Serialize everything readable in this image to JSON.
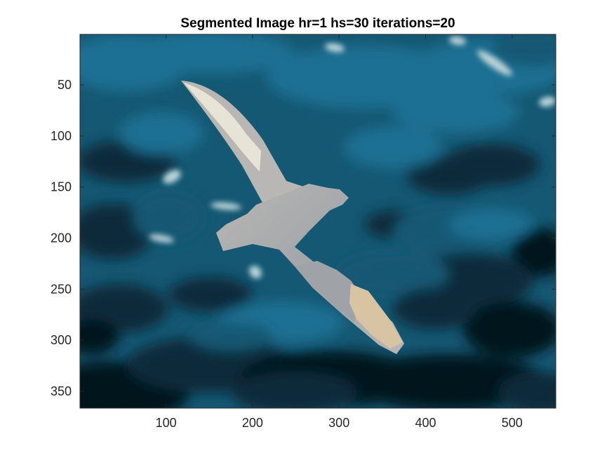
{
  "chart_data": {
    "type": "image",
    "title": "Segmented Image hr=1 hs=30 iterations=20",
    "xlim": [
      0.5,
      550.5
    ],
    "ylim": [
      0.5,
      366.5
    ],
    "y_reversed": true,
    "x_ticks": [
      100,
      200,
      300,
      400,
      500
    ],
    "y_ticks": [
      50,
      100,
      150,
      200,
      250,
      300,
      350
    ],
    "grid": false,
    "content": "mean-shift segmented photograph of a seabird in flight over ocean water",
    "palette": {
      "water_light": "#1f6f93",
      "water_mid": "#155873",
      "water_dark": "#0c2a3a",
      "water_deep": "#06131d",
      "foam": "#b9d3d8",
      "bird_light": "#e7e3d6",
      "bird_mid": "#b9b7b4",
      "bird_shadow": "#9fa3a8",
      "bird_warm": "#d8c3a3"
    }
  }
}
